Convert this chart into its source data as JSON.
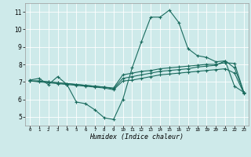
{
  "xlabel": "Humidex (Indice chaleur)",
  "bg_color": "#ceeaea",
  "line_color": "#1a6b5e",
  "grid_color": "#ffffff",
  "xlim": [
    -0.5,
    23.5
  ],
  "ylim": [
    4.5,
    11.5
  ],
  "xticks": [
    0,
    1,
    2,
    3,
    4,
    5,
    6,
    7,
    8,
    9,
    10,
    11,
    12,
    13,
    14,
    15,
    16,
    17,
    18,
    19,
    20,
    21,
    22,
    23
  ],
  "yticks": [
    5,
    6,
    7,
    8,
    9,
    10,
    11
  ],
  "line1": {
    "x": [
      0,
      1,
      2,
      3,
      4,
      5,
      6,
      7,
      8,
      9,
      10,
      11,
      12,
      13,
      14,
      15,
      16,
      17,
      18,
      19,
      20,
      21,
      22,
      23
    ],
    "y": [
      7.1,
      7.2,
      6.85,
      7.3,
      6.85,
      5.85,
      5.75,
      5.4,
      4.95,
      4.85,
      6.0,
      7.8,
      9.3,
      10.7,
      10.7,
      11.1,
      10.4,
      8.9,
      8.5,
      8.4,
      8.15,
      8.2,
      6.75,
      6.4
    ]
  },
  "line2": {
    "x": [
      0,
      1,
      2,
      3,
      4,
      5,
      6,
      7,
      8,
      9,
      10,
      11,
      12,
      13,
      14,
      15,
      16,
      17,
      18,
      19,
      20,
      21,
      22,
      23
    ],
    "y": [
      7.05,
      7.05,
      7.0,
      6.95,
      6.9,
      6.85,
      6.8,
      6.75,
      6.7,
      6.65,
      7.4,
      7.5,
      7.6,
      7.65,
      7.75,
      7.8,
      7.85,
      7.9,
      7.95,
      8.0,
      8.0,
      8.1,
      8.05,
      6.4
    ]
  },
  "line3": {
    "x": [
      0,
      1,
      2,
      3,
      4,
      5,
      6,
      7,
      8,
      9,
      10,
      11,
      12,
      13,
      14,
      15,
      16,
      17,
      18,
      19,
      20,
      21,
      22,
      23
    ],
    "y": [
      7.05,
      7.05,
      7.0,
      6.95,
      6.9,
      6.85,
      6.8,
      6.75,
      6.7,
      6.6,
      7.2,
      7.3,
      7.4,
      7.5,
      7.6,
      7.65,
      7.7,
      7.75,
      7.85,
      7.9,
      7.95,
      8.2,
      7.8,
      6.4
    ]
  },
  "line4": {
    "x": [
      0,
      1,
      2,
      3,
      4,
      5,
      6,
      7,
      8,
      9,
      10,
      11,
      12,
      13,
      14,
      15,
      16,
      17,
      18,
      19,
      20,
      21,
      22,
      23
    ],
    "y": [
      7.05,
      7.0,
      6.95,
      6.9,
      6.85,
      6.8,
      6.75,
      6.7,
      6.65,
      6.55,
      7.05,
      7.1,
      7.2,
      7.3,
      7.4,
      7.45,
      7.5,
      7.55,
      7.6,
      7.65,
      7.7,
      7.75,
      7.5,
      6.35
    ]
  }
}
